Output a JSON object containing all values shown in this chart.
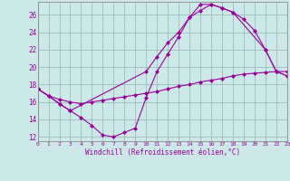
{
  "line1": {
    "x": [
      0,
      1,
      2,
      3,
      4,
      5,
      6,
      7,
      8,
      9,
      10,
      11,
      12,
      13,
      14,
      15,
      16,
      17,
      18,
      21,
      22,
      23
    ],
    "y": [
      17.5,
      16.7,
      15.8,
      15.0,
      14.2,
      13.3,
      12.2,
      12.0,
      12.5,
      13.0,
      16.5,
      19.5,
      21.5,
      23.5,
      25.7,
      27.2,
      27.2,
      26.8,
      26.3,
      22.0,
      19.5,
      19.0
    ]
  },
  "line2": {
    "x": [
      0,
      1,
      2,
      3,
      10,
      11,
      12,
      13,
      14,
      15,
      16,
      17,
      18,
      19,
      20,
      21,
      22,
      23
    ],
    "y": [
      17.5,
      16.7,
      15.8,
      15.0,
      19.5,
      21.2,
      22.8,
      24.0,
      25.7,
      26.5,
      27.2,
      26.8,
      26.3,
      25.5,
      24.2,
      22.0,
      19.5,
      19.0
    ]
  },
  "line3": {
    "x": [
      0,
      1,
      2,
      3,
      4,
      5,
      6,
      7,
      8,
      9,
      10,
      11,
      12,
      13,
      14,
      15,
      16,
      17,
      18,
      19,
      20,
      21,
      22,
      23
    ],
    "y": [
      17.5,
      16.7,
      16.3,
      16.0,
      15.8,
      16.0,
      16.2,
      16.4,
      16.6,
      16.8,
      17.0,
      17.2,
      17.5,
      17.8,
      18.0,
      18.3,
      18.5,
      18.7,
      19.0,
      19.2,
      19.3,
      19.4,
      19.5,
      19.5
    ]
  },
  "color": "#990099",
  "bg_color": "#cce8e8",
  "grid_color": "#9bbaba",
  "xlabel": "Windchill (Refroidissement éolien,°C)",
  "xlim": [
    0,
    23
  ],
  "ylim": [
    11.5,
    27.5
  ],
  "yticks": [
    12,
    14,
    16,
    18,
    20,
    22,
    24,
    26
  ],
  "xticks": [
    0,
    1,
    2,
    3,
    4,
    5,
    6,
    7,
    8,
    9,
    10,
    11,
    12,
    13,
    14,
    15,
    16,
    17,
    18,
    19,
    20,
    21,
    22,
    23
  ],
  "marker": "D",
  "markersize": 2,
  "linewidth": 0.8
}
